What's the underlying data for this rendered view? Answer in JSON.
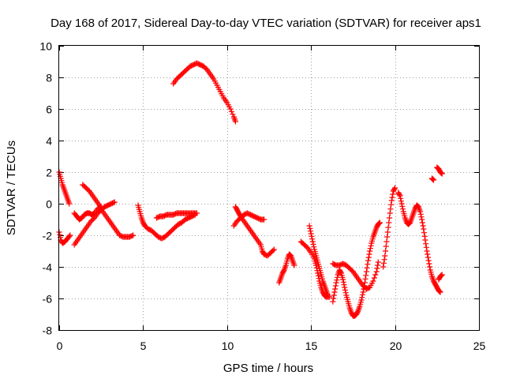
{
  "chart_data": {
    "type": "scatter",
    "title": "Day 168 of 2017, Sidereal Day-to-day VTEC variation (SDTVAR) for receiver aps1",
    "xlabel": "GPS time / hours",
    "ylabel": "SDTVAR / TECUs",
    "xlim": [
      0,
      25
    ],
    "ylim": [
      -8,
      10
    ],
    "xticks": [
      "0",
      "5",
      "10",
      "15",
      "20",
      "25"
    ],
    "yticks": [
      "-8",
      "-6",
      "-4",
      "-2",
      "0",
      "2",
      "4",
      "6",
      "8",
      "10"
    ],
    "grid": true,
    "marker": "+",
    "color": "#ff0000",
    "segments": [
      [
        [
          0.0,
          2.0
        ],
        [
          0.1,
          1.6
        ],
        [
          0.2,
          1.2
        ],
        [
          0.3,
          0.9
        ],
        [
          0.4,
          0.6
        ],
        [
          0.5,
          0.3
        ],
        [
          0.6,
          0.0
        ]
      ],
      [
        [
          0.0,
          -1.8
        ],
        [
          0.1,
          -2.3
        ],
        [
          0.2,
          -2.5
        ],
        [
          0.35,
          -2.4
        ],
        [
          0.5,
          -2.2
        ],
        [
          0.65,
          -2.0
        ]
      ],
      [
        [
          0.9,
          -2.6
        ],
        [
          1.1,
          -2.3
        ],
        [
          1.3,
          -2.0
        ],
        [
          1.5,
          -1.7
        ],
        [
          1.7,
          -1.4
        ],
        [
          1.9,
          -1.1
        ],
        [
          2.1,
          -0.9
        ],
        [
          2.3,
          -0.6
        ],
        [
          2.5,
          -0.4
        ],
        [
          2.7,
          -0.2
        ],
        [
          2.9,
          -0.1
        ],
        [
          3.1,
          0.0
        ],
        [
          3.3,
          0.1
        ]
      ],
      [
        [
          0.9,
          -0.6
        ],
        [
          1.05,
          -0.8
        ],
        [
          1.2,
          -1.0
        ],
        [
          1.35,
          -0.9
        ],
        [
          1.5,
          -0.7
        ],
        [
          1.65,
          -0.6
        ],
        [
          1.8,
          -0.6
        ],
        [
          1.95,
          -0.7
        ],
        [
          2.1,
          -0.6
        ],
        [
          2.3,
          -0.3
        ],
        [
          2.5,
          -0.2
        ]
      ],
      [
        [
          1.4,
          1.2
        ],
        [
          1.6,
          1.0
        ],
        [
          1.8,
          0.8
        ],
        [
          2.0,
          0.5
        ],
        [
          2.2,
          0.2
        ],
        [
          2.4,
          -0.1
        ],
        [
          2.6,
          -0.5
        ],
        [
          2.8,
          -0.8
        ],
        [
          3.0,
          -1.1
        ],
        [
          3.2,
          -1.4
        ],
        [
          3.4,
          -1.7
        ],
        [
          3.6,
          -2.0
        ],
        [
          3.8,
          -2.1
        ],
        [
          4.0,
          -2.1
        ],
        [
          4.2,
          -2.1
        ],
        [
          4.4,
          -2.0
        ]
      ],
      [
        [
          4.7,
          -0.1
        ],
        [
          4.8,
          -0.5
        ],
        [
          4.9,
          -0.9
        ],
        [
          5.0,
          -1.2
        ],
        [
          5.1,
          -1.4
        ],
        [
          5.3,
          -1.6
        ],
        [
          5.5,
          -1.7
        ],
        [
          5.7,
          -1.9
        ],
        [
          5.9,
          -2.1
        ],
        [
          6.1,
          -2.2
        ],
        [
          6.3,
          -2.1
        ],
        [
          6.5,
          -1.9
        ],
        [
          6.7,
          -1.7
        ],
        [
          6.9,
          -1.5
        ],
        [
          7.1,
          -1.3
        ],
        [
          7.3,
          -1.2
        ],
        [
          7.5,
          -1.0
        ],
        [
          7.7,
          -0.9
        ],
        [
          7.9,
          -0.8
        ],
        [
          8.1,
          -0.7
        ]
      ],
      [
        [
          5.8,
          -0.9
        ],
        [
          6.0,
          -0.8
        ],
        [
          6.2,
          -0.8
        ],
        [
          6.4,
          -0.7
        ],
        [
          6.6,
          -0.7
        ],
        [
          6.8,
          -0.7
        ],
        [
          7.0,
          -0.6
        ],
        [
          7.2,
          -0.6
        ],
        [
          7.4,
          -0.6
        ],
        [
          7.6,
          -0.6
        ],
        [
          7.8,
          -0.6
        ],
        [
          8.0,
          -0.6
        ],
        [
          8.2,
          -0.6
        ]
      ],
      [
        [
          6.8,
          7.6
        ],
        [
          7.0,
          7.9
        ],
        [
          7.2,
          8.1
        ],
        [
          7.4,
          8.3
        ],
        [
          7.6,
          8.5
        ],
        [
          7.8,
          8.7
        ],
        [
          8.0,
          8.8
        ],
        [
          8.2,
          8.9
        ],
        [
          8.4,
          8.8
        ],
        [
          8.6,
          8.7
        ],
        [
          8.8,
          8.5
        ],
        [
          9.0,
          8.2
        ],
        [
          9.2,
          7.9
        ],
        [
          9.4,
          7.5
        ],
        [
          9.6,
          7.1
        ],
        [
          9.8,
          6.7
        ],
        [
          10.0,
          6.4
        ],
        [
          10.2,
          6.0
        ],
        [
          10.4,
          5.5
        ],
        [
          10.5,
          5.2
        ]
      ],
      [
        [
          10.5,
          -0.2
        ],
        [
          10.6,
          -0.4
        ],
        [
          10.7,
          -0.6
        ],
        [
          10.8,
          -0.8
        ],
        [
          11.0,
          -1.1
        ],
        [
          11.2,
          -1.4
        ],
        [
          11.4,
          -1.7
        ],
        [
          11.6,
          -2.0
        ],
        [
          11.8,
          -2.3
        ],
        [
          12.0,
          -2.6
        ],
        [
          12.1,
          -3.0
        ],
        [
          12.2,
          -3.2
        ],
        [
          12.4,
          -3.3
        ],
        [
          12.6,
          -3.1
        ],
        [
          12.8,
          -2.9
        ]
      ],
      [
        [
          10.4,
          -1.4
        ],
        [
          10.6,
          -1.1
        ],
        [
          10.8,
          -0.9
        ],
        [
          11.0,
          -0.7
        ],
        [
          11.2,
          -0.6
        ],
        [
          11.4,
          -0.7
        ],
        [
          11.6,
          -0.8
        ],
        [
          11.8,
          -0.9
        ],
        [
          12.0,
          -1.0
        ],
        [
          12.2,
          -1.0
        ]
      ],
      [
        [
          13.1,
          -5.0
        ],
        [
          13.2,
          -4.7
        ],
        [
          13.3,
          -4.4
        ],
        [
          13.4,
          -4.2
        ],
        [
          13.5,
          -3.9
        ],
        [
          13.6,
          -3.5
        ],
        [
          13.7,
          -3.2
        ],
        [
          13.8,
          -3.3
        ],
        [
          13.9,
          -3.6
        ],
        [
          14.0,
          -3.9
        ]
      ],
      [
        [
          14.4,
          -2.4
        ],
        [
          14.6,
          -2.6
        ],
        [
          14.8,
          -2.8
        ],
        [
          15.0,
          -3.1
        ],
        [
          15.2,
          -3.5
        ],
        [
          15.3,
          -3.9
        ],
        [
          15.4,
          -4.4
        ],
        [
          15.5,
          -4.9
        ],
        [
          15.6,
          -5.3
        ],
        [
          15.7,
          -5.6
        ],
        [
          15.8,
          -5.8
        ],
        [
          15.9,
          -5.9
        ],
        [
          16.1,
          -5.9
        ]
      ],
      [
        [
          14.9,
          -1.4
        ],
        [
          15.0,
          -1.9
        ],
        [
          15.1,
          -2.4
        ],
        [
          15.2,
          -2.9
        ],
        [
          15.3,
          -3.3
        ],
        [
          15.4,
          -3.7
        ],
        [
          15.5,
          -4.1
        ],
        [
          15.6,
          -4.5
        ],
        [
          15.7,
          -4.9
        ],
        [
          15.8,
          -5.2
        ],
        [
          15.9,
          -5.5
        ],
        [
          16.0,
          -5.8
        ]
      ],
      [
        [
          16.3,
          -6.2
        ],
        [
          16.4,
          -5.6
        ],
        [
          16.5,
          -5.0
        ],
        [
          16.6,
          -4.5
        ],
        [
          16.7,
          -4.2
        ],
        [
          16.8,
          -4.4
        ],
        [
          16.9,
          -4.8
        ],
        [
          17.0,
          -5.3
        ],
        [
          17.1,
          -5.8
        ],
        [
          17.2,
          -6.2
        ],
        [
          17.3,
          -6.6
        ],
        [
          17.4,
          -6.9
        ],
        [
          17.5,
          -7.1
        ],
        [
          17.6,
          -7.1
        ],
        [
          17.7,
          -7.0
        ],
        [
          17.8,
          -6.8
        ],
        [
          17.9,
          -6.5
        ],
        [
          18.0,
          -6.1
        ],
        [
          18.1,
          -5.6
        ],
        [
          18.2,
          -5.0
        ],
        [
          18.3,
          -4.3
        ],
        [
          18.4,
          -3.6
        ],
        [
          18.5,
          -3.0
        ],
        [
          18.6,
          -2.5
        ],
        [
          18.7,
          -2.1
        ],
        [
          18.8,
          -1.8
        ],
        [
          18.9,
          -1.5
        ],
        [
          19.0,
          -1.3
        ],
        [
          19.1,
          -1.2
        ]
      ],
      [
        [
          16.3,
          -3.8
        ],
        [
          16.5,
          -3.9
        ],
        [
          16.7,
          -3.9
        ],
        [
          16.9,
          -3.8
        ],
        [
          17.1,
          -3.9
        ],
        [
          17.3,
          -4.1
        ],
        [
          17.5,
          -4.3
        ],
        [
          17.7,
          -4.6
        ],
        [
          17.9,
          -4.9
        ],
        [
          18.1,
          -5.2
        ],
        [
          18.3,
          -5.4
        ],
        [
          18.5,
          -5.3
        ],
        [
          18.7,
          -4.9
        ],
        [
          18.9,
          -4.3
        ],
        [
          19.0,
          -3.7
        ]
      ],
      [
        [
          19.3,
          -4.0
        ],
        [
          19.4,
          -3.3
        ],
        [
          19.5,
          -2.4
        ],
        [
          19.6,
          -1.5
        ],
        [
          19.7,
          -0.6
        ],
        [
          19.8,
          0.2
        ],
        [
          19.9,
          0.8
        ],
        [
          20.0,
          1.0
        ]
      ],
      [
        [
          20.2,
          0.7
        ],
        [
          20.3,
          0.5
        ],
        [
          20.4,
          0.0
        ],
        [
          20.5,
          -0.5
        ],
        [
          20.6,
          -0.9
        ],
        [
          20.7,
          -1.2
        ],
        [
          20.8,
          -1.3
        ],
        [
          20.9,
          -1.2
        ],
        [
          21.0,
          -0.9
        ],
        [
          21.1,
          -0.6
        ],
        [
          21.2,
          -0.3
        ],
        [
          21.3,
          -0.1
        ],
        [
          21.4,
          -0.2
        ],
        [
          21.5,
          -0.5
        ],
        [
          21.6,
          -1.0
        ],
        [
          21.7,
          -1.6
        ],
        [
          21.8,
          -2.3
        ],
        [
          21.9,
          -3.0
        ],
        [
          22.0,
          -3.6
        ],
        [
          22.1,
          -4.2
        ],
        [
          22.2,
          -4.6
        ],
        [
          22.3,
          -4.9
        ],
        [
          22.4,
          -5.1
        ],
        [
          22.5,
          -5.3
        ],
        [
          22.6,
          -5.5
        ],
        [
          22.7,
          -5.6
        ]
      ],
      [
        [
          22.6,
          -4.8
        ],
        [
          22.7,
          -4.6
        ],
        [
          22.8,
          -4.5
        ]
      ],
      [
        [
          22.2,
          1.6
        ],
        [
          22.3,
          1.5
        ]
      ],
      [
        [
          22.5,
          2.3
        ],
        [
          22.6,
          2.2
        ],
        [
          22.7,
          2.0
        ],
        [
          22.8,
          1.9
        ]
      ]
    ]
  }
}
